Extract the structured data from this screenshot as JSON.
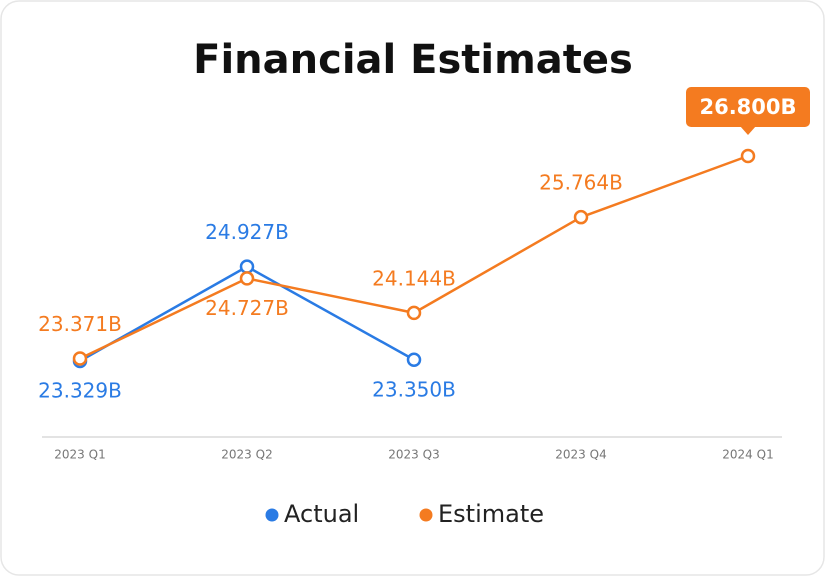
{
  "chart_data": {
    "type": "line",
    "title": "Financial Estimates",
    "categories": [
      "2023 Q1",
      "2023 Q2",
      "2023 Q3",
      "2023 Q4",
      "2024 Q1"
    ],
    "series": [
      {
        "name": "Actual",
        "color": "#2a7be4",
        "values": [
          23.329,
          24.927,
          23.35,
          null,
          null
        ],
        "value_labels": [
          "23.329B",
          "24.927B",
          "23.350B",
          null,
          null
        ]
      },
      {
        "name": "Estimate",
        "color": "#f47b20",
        "values": [
          23.371,
          24.727,
          24.144,
          25.764,
          26.8
        ],
        "value_labels": [
          "23.371B",
          "24.727B",
          "24.144B",
          "25.764B",
          "26.800B"
        ]
      }
    ]
  }
}
